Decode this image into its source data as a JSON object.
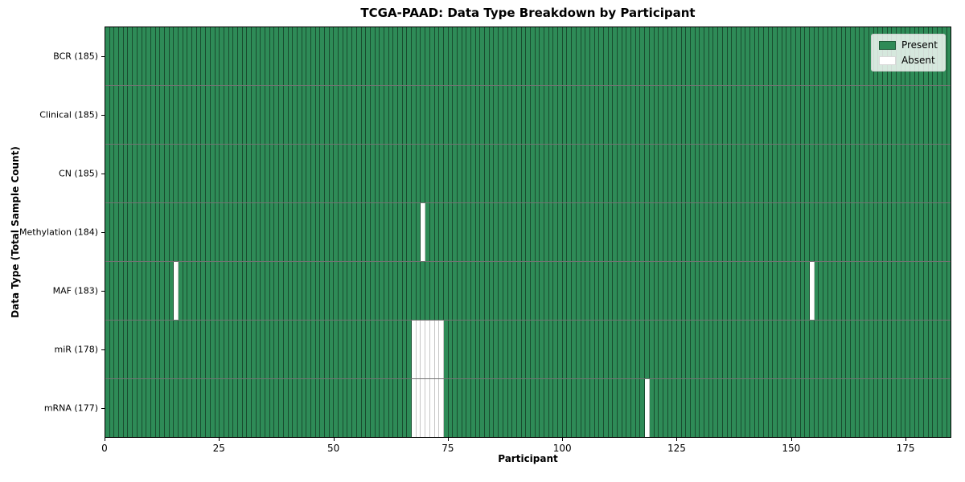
{
  "chart_data": {
    "type": "heatmap",
    "title": "TCGA-PAAD: Data Type Breakdown by Participant",
    "xlabel": "Participant",
    "ylabel": "Data Type (Total Sample Count)",
    "n_participants": 185,
    "x_ticks": [
      0,
      25,
      50,
      75,
      100,
      125,
      150,
      175
    ],
    "x_range": [
      0,
      185
    ],
    "grid": "row-and-column-edges",
    "colors": {
      "present": "#2e8b57",
      "absent": "#ffffff",
      "cell_edge": "rgba(0,0,0,0.45)",
      "row_divider": "rgba(0,0,0,0.55)",
      "spine": "#000000"
    },
    "legend": {
      "position": "upper right",
      "entries": [
        {
          "label": "Present",
          "color": "#2e8b57"
        },
        {
          "label": "Absent",
          "color": "#ffffff"
        }
      ]
    },
    "rows": [
      {
        "label": "BCR (185)",
        "data_type": "BCR",
        "total_samples": 185,
        "absent_participants": []
      },
      {
        "label": "Clinical (185)",
        "data_type": "Clinical",
        "total_samples": 185,
        "absent_participants": []
      },
      {
        "label": "CN (185)",
        "data_type": "CN",
        "total_samples": 185,
        "absent_participants": []
      },
      {
        "label": "Methylation (184)",
        "data_type": "Methylation",
        "total_samples": 184,
        "absent_participants": [
          69
        ]
      },
      {
        "label": "MAF (183)",
        "data_type": "MAF",
        "total_samples": 183,
        "absent_participants": [
          15,
          154
        ]
      },
      {
        "label": "miR (178)",
        "data_type": "miR",
        "total_samples": 178,
        "absent_participants": [
          67,
          68,
          69,
          70,
          71,
          72,
          73
        ]
      },
      {
        "label": "mRNA (177)",
        "data_type": "mRNA",
        "total_samples": 177,
        "absent_participants": [
          67,
          68,
          69,
          70,
          71,
          72,
          73,
          118
        ]
      }
    ]
  }
}
